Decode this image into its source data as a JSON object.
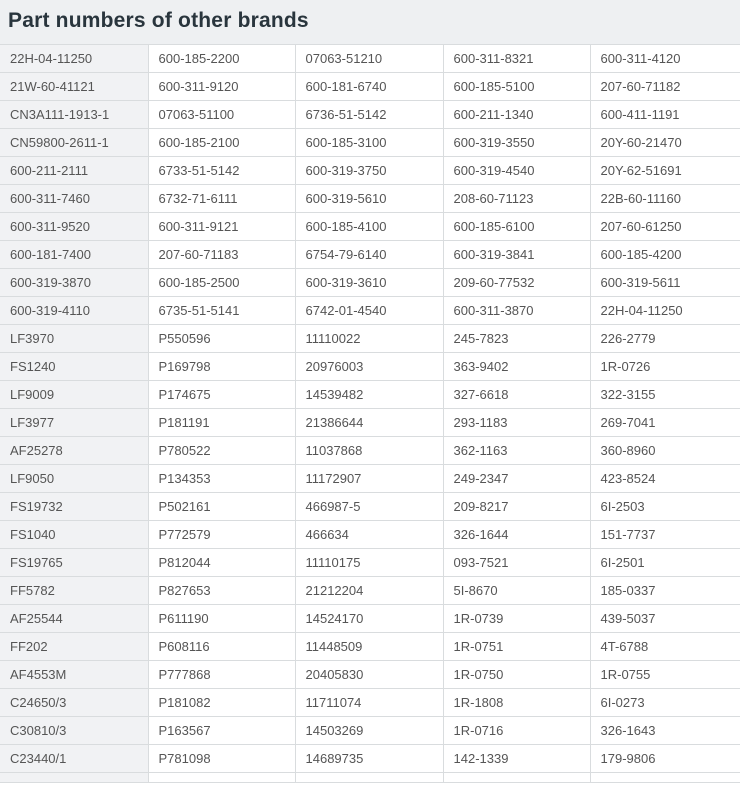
{
  "header": {
    "title": "Part numbers of other brands"
  },
  "colors": {
    "header_bg": "#eef0f2",
    "header_text": "#29353d",
    "first_col_bg": "#f1f2f4",
    "cell_bg": "#ffffff",
    "border": "#d9dcde",
    "cell_text": "#555555"
  },
  "table": {
    "columns": 5,
    "rows": [
      [
        "22H-04-11250",
        "600-185-2200",
        "07063-51210",
        "600-311-8321",
        "600-311-4120"
      ],
      [
        "21W-60-41121",
        "600-311-9120",
        "600-181-6740",
        "600-185-5100",
        "207-60-71182"
      ],
      [
        "CN3A111-1913-1",
        "07063-51100",
        "6736-51-5142",
        "600-211-1340",
        "600-411-1191"
      ],
      [
        "CN59800-2611-1",
        "600-185-2100",
        "600-185-3100",
        "600-319-3550",
        "20Y-60-21470"
      ],
      [
        "600-211-2111",
        "6733-51-5142",
        "600-319-3750",
        "600-319-4540",
        "20Y-62-51691"
      ],
      [
        "600-311-7460",
        "6732-71-6111",
        "600-319-5610",
        "208-60-71123",
        "22B-60-11160"
      ],
      [
        "600-311-9520",
        "600-311-9121",
        "600-185-4100",
        "600-185-6100",
        "207-60-61250"
      ],
      [
        "600-181-7400",
        "207-60-71183",
        "6754-79-6140",
        "600-319-3841",
        "600-185-4200"
      ],
      [
        "600-319-3870",
        "600-185-2500",
        "600-319-3610",
        "209-60-77532",
        "600-319-5611"
      ],
      [
        "600-319-4110",
        "6735-51-5141",
        "6742-01-4540",
        "600-311-3870",
        "22H-04-11250"
      ],
      [
        "LF3970",
        "P550596",
        "11110022",
        "245-7823",
        "226-2779"
      ],
      [
        "FS1240",
        "P169798",
        "20976003",
        "363-9402",
        "1R-0726"
      ],
      [
        "LF9009",
        "P174675",
        "14539482",
        "327-6618",
        "322-3155"
      ],
      [
        "LF3977",
        "P181191",
        "21386644",
        "293-1183",
        "269-7041"
      ],
      [
        "AF25278",
        "P780522",
        "11037868",
        "362-1163",
        "360-8960"
      ],
      [
        "LF9050",
        "P134353",
        "11172907",
        "249-2347",
        "423-8524"
      ],
      [
        "FS19732",
        "P502161",
        "466987-5",
        "209-8217",
        "6I-2503"
      ],
      [
        "FS1040",
        "P772579",
        "466634",
        "326-1644",
        "151-7737"
      ],
      [
        "FS19765",
        "P812044",
        "11110175",
        "093-7521",
        "6I-2501"
      ],
      [
        "FF5782",
        "P827653",
        "21212204",
        "5I-8670",
        "185-0337"
      ],
      [
        "AF25544",
        "P611190",
        "14524170",
        "1R-0739",
        "439-5037"
      ],
      [
        "FF202",
        "P608116",
        "11448509",
        "1R-0751",
        "4T-6788"
      ],
      [
        "AF4553M",
        "P777868",
        "20405830",
        "1R-0750",
        "1R-0755"
      ],
      [
        "C24650/3",
        "P181082",
        "11711074",
        "1R-1808",
        "6I-0273"
      ],
      [
        "C30810/3",
        "P163567",
        "14503269",
        "1R-0716",
        "326-1643"
      ],
      [
        "C23440/1",
        "P781098",
        "14689735",
        "142-1339",
        "179-9806"
      ]
    ]
  }
}
